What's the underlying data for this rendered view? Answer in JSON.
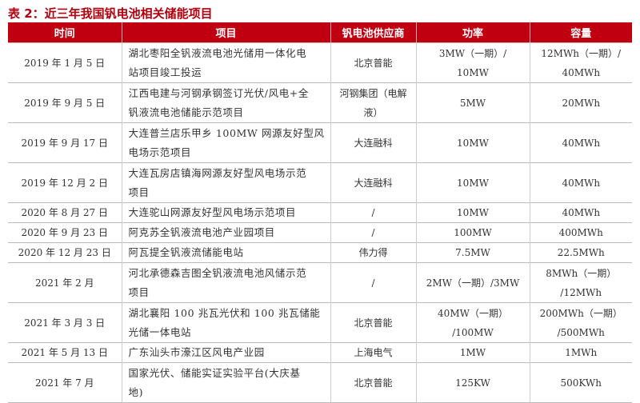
{
  "title": "表 2：近三年我国钒电池相关储能项目",
  "header_color": "#c00010",
  "columns": [
    "时间",
    "项目",
    "钒电池供应商",
    "功率",
    "容量"
  ],
  "rows": [
    {
      "date": "2019 年 1 月 5 日",
      "project": [
        "湖北枣阳全钒液流电池光储用一体化电",
        "站项目竣工投运"
      ],
      "supplier": [
        "北京普能"
      ],
      "power": [
        "3MW（一期）/",
        "10MW"
      ],
      "capacity": [
        "12MWh（一期）/",
        "40MWh"
      ]
    },
    {
      "date": "2019 年 9 月 5 日",
      "project": [
        "江西电建与河钢承钢签订光伏/风电+全",
        "钒液流电池储能示范项目"
      ],
      "supplier": [
        "河钢集团（电解",
        "液）"
      ],
      "power": [
        "5MW"
      ],
      "capacity": [
        "20MWh"
      ]
    },
    {
      "date": "2019 年 9 月 17 日",
      "project": [
        "大连普兰店乐甲乡 100MW 网源友好型风",
        "电场示范项目"
      ],
      "supplier": [
        "大连融科"
      ],
      "power": [
        "10MW"
      ],
      "capacity": [
        "40MWh"
      ]
    },
    {
      "date": "2019 年 12 月 2 日",
      "project": [
        "大连瓦房店镇海网源友好型风电场示范",
        "项目"
      ],
      "supplier": [
        "大连融科"
      ],
      "power": [
        "10MW"
      ],
      "capacity": [
        "40MWh"
      ]
    },
    {
      "date": "2020 年 8 月 27 日",
      "project": [
        "大连驼山网源友好型风电场示范项目"
      ],
      "supplier": [
        "/"
      ],
      "power": [
        "10MW"
      ],
      "capacity": [
        "40MWh"
      ]
    },
    {
      "date": "2020 年 9 月 23 日",
      "project": [
        "阿克苏全钒液流电池产业园项目"
      ],
      "supplier": [
        "/"
      ],
      "power": [
        "100MW"
      ],
      "capacity": [
        "400MWh"
      ]
    },
    {
      "date": "2020 年 12 月 23 日",
      "project": [
        "阿瓦提全钒液流储能电站"
      ],
      "supplier": [
        "伟力得"
      ],
      "power": [
        "7.5MW"
      ],
      "capacity": [
        "22.5MWh"
      ]
    },
    {
      "date": "2021 年 2 月",
      "project": [
        "河北承德森吉图全钒液流电池风储示范",
        "项目"
      ],
      "supplier": [
        "/"
      ],
      "power": [
        "2MW（一期）/3MW"
      ],
      "capacity": [
        "8MWh（一期）",
        "/12MWh"
      ]
    },
    {
      "date": "2021 年 3 月 3 日",
      "project": [
        "湖北襄阳 100 兆瓦光伏和 100 兆瓦储能",
        "光储一体电站"
      ],
      "supplier": [
        "北京普能"
      ],
      "power": [
        "40MW（一期）",
        "/100MW"
      ],
      "capacity": [
        "200MWh（一期）",
        "/500MWh"
      ]
    },
    {
      "date": "2021 年 5 月 13 日",
      "project": [
        "广东汕头市濠江区风电产业园"
      ],
      "supplier": [
        "上海电气"
      ],
      "power": [
        "1MW"
      ],
      "capacity": [
        "1MWh"
      ]
    },
    {
      "date": "2021 年 7 月",
      "project": [
        "国家光伏、储能实证实验平台(大庆基",
        "地)"
      ],
      "supplier": [
        "北京普能"
      ],
      "power": [
        "125KW"
      ],
      "capacity": [
        "500KWh"
      ]
    }
  ]
}
